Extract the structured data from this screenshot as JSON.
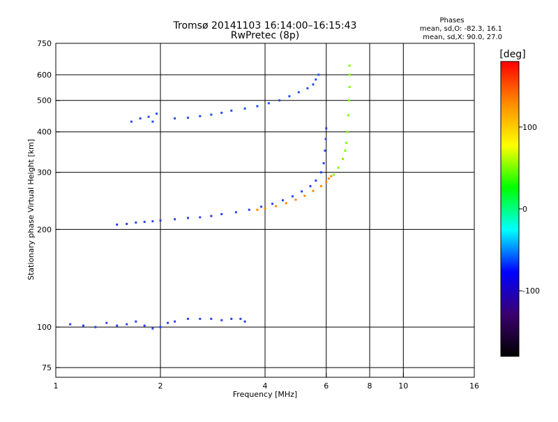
{
  "chart_data": {
    "type": "scatter",
    "title": "Tromsø 20141103 16:14:00–16:15:43",
    "subtitle": "RwPretec (8p)",
    "xlabel": "Frequency [MHz]",
    "ylabel": "Stationary phase Virtual Height [km]",
    "xscale": "log",
    "yscale": "log",
    "xlim": [
      1,
      16
    ],
    "ylim": [
      70,
      750
    ],
    "xticks": [
      1,
      2,
      4,
      6,
      8,
      10,
      16
    ],
    "yticks": [
      75,
      100,
      200,
      300,
      400,
      500,
      600,
      750
    ],
    "grid": true,
    "phase_stats": {
      "heading": "Phases",
      "line1": "mean, sd,O: -82.3, 16.1",
      "line2": "mean, sd,X:  90.0, 27.0"
    },
    "colorbar": {
      "label": "[deg]",
      "range": [
        -180,
        180
      ],
      "ticks": [
        100,
        0,
        -100
      ],
      "colors": [
        "#ff0000",
        "#ff8c00",
        "#ffff00",
        "#00ff00",
        "#00ffff",
        "#0000ff",
        "#3b0070",
        "#000000"
      ]
    },
    "series": [
      {
        "color": "#2a40e8",
        "points": [
          [
            1.5,
            207
          ],
          [
            1.6,
            208
          ],
          [
            1.7,
            210
          ],
          [
            1.8,
            211
          ],
          [
            1.9,
            212
          ],
          [
            2.0,
            213
          ],
          [
            2.2,
            215
          ],
          [
            2.4,
            217
          ],
          [
            2.6,
            218
          ],
          [
            2.8,
            220
          ],
          [
            3.0,
            223
          ],
          [
            3.3,
            226
          ],
          [
            3.6,
            230
          ],
          [
            3.9,
            235
          ],
          [
            4.2,
            240
          ],
          [
            4.5,
            246
          ],
          [
            4.8,
            253
          ],
          [
            5.1,
            262
          ],
          [
            5.4,
            272
          ],
          [
            5.6,
            283
          ],
          [
            5.8,
            300
          ],
          [
            5.9,
            320
          ],
          [
            5.95,
            350
          ],
          [
            5.98,
            380
          ],
          [
            6.0,
            410
          ]
        ]
      },
      {
        "color": "#ff8c00",
        "points": [
          [
            3.8,
            230
          ],
          [
            4.0,
            232
          ],
          [
            4.3,
            236
          ],
          [
            4.6,
            241
          ],
          [
            4.9,
            247
          ],
          [
            5.2,
            254
          ],
          [
            5.5,
            263
          ],
          [
            5.8,
            272
          ],
          [
            6.0,
            280
          ],
          [
            6.1,
            287
          ],
          [
            6.2,
            292
          ]
        ]
      },
      {
        "color": "#7cfc00",
        "points": [
          [
            6.3,
            295
          ],
          [
            6.5,
            310
          ],
          [
            6.7,
            330
          ],
          [
            6.8,
            350
          ],
          [
            6.85,
            370
          ],
          [
            6.9,
            400
          ],
          [
            6.95,
            450
          ],
          [
            6.98,
            500
          ],
          [
            7.0,
            550
          ],
          [
            7.0,
            600
          ],
          [
            7.0,
            640
          ]
        ]
      },
      {
        "color": "#1f4fe8",
        "points": [
          [
            1.65,
            430
          ],
          [
            1.75,
            440
          ],
          [
            1.85,
            445
          ],
          [
            1.9,
            430
          ],
          [
            1.95,
            455
          ],
          [
            2.2,
            440
          ],
          [
            2.4,
            442
          ],
          [
            2.6,
            447
          ],
          [
            2.8,
            452
          ],
          [
            3.0,
            458
          ],
          [
            3.2,
            465
          ],
          [
            3.5,
            472
          ],
          [
            3.8,
            480
          ],
          [
            4.1,
            490
          ],
          [
            4.4,
            500
          ],
          [
            4.7,
            515
          ],
          [
            5.0,
            530
          ],
          [
            5.3,
            545
          ],
          [
            5.5,
            560
          ],
          [
            5.6,
            580
          ],
          [
            5.7,
            600
          ]
        ]
      },
      {
        "color": "#2a40e8",
        "points": [
          [
            1.1,
            102
          ],
          [
            1.2,
            101
          ],
          [
            1.3,
            100
          ],
          [
            1.4,
            103
          ],
          [
            1.5,
            101
          ],
          [
            1.6,
            102
          ],
          [
            1.7,
            104
          ],
          [
            1.8,
            101
          ],
          [
            1.9,
            99
          ],
          [
            2.0,
            100
          ],
          [
            2.1,
            103
          ],
          [
            2.2,
            104
          ],
          [
            2.4,
            106
          ],
          [
            2.6,
            106
          ],
          [
            2.8,
            106
          ],
          [
            3.0,
            105
          ],
          [
            3.2,
            106
          ],
          [
            3.4,
            106
          ],
          [
            3.5,
            104
          ]
        ]
      }
    ]
  }
}
